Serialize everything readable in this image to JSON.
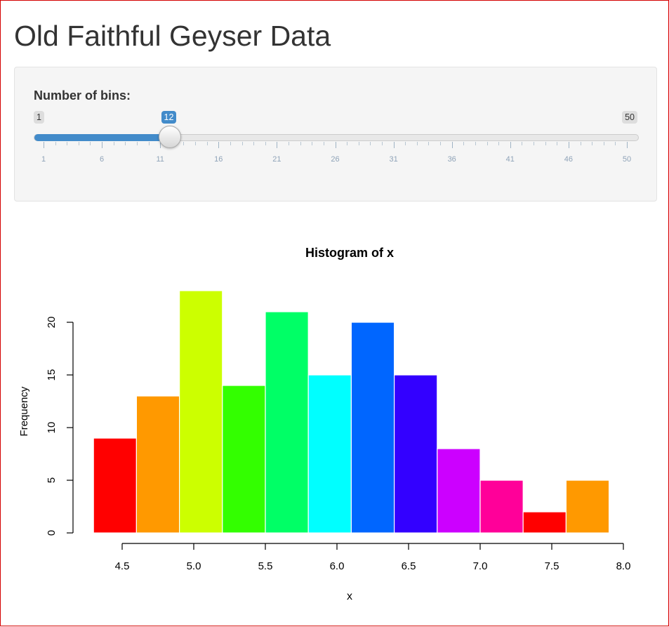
{
  "title": "Old Faithful Geyser Data",
  "slider": {
    "label": "Number of bins:",
    "min": "1",
    "max": "50",
    "value": "12",
    "fraction": 0.2245,
    "tick_labels": [
      "1",
      "6",
      "11",
      "16",
      "21",
      "26",
      "31",
      "36",
      "41",
      "46",
      "50"
    ],
    "accent_color": "#428bca"
  },
  "chart_data": {
    "type": "bar",
    "title": "Histogram of x",
    "xlabel": "x",
    "ylabel": "Frequency",
    "bin_start": 4.3,
    "bin_width": 0.3,
    "values": [
      9,
      13,
      23,
      14,
      21,
      15,
      20,
      15,
      8,
      5,
      2,
      5
    ],
    "colors": [
      "#FF0000",
      "#FF9900",
      "#CCFF00",
      "#33FF00",
      "#00FF66",
      "#00FFFF",
      "#0066FF",
      "#3300FF",
      "#CC00FF",
      "#FF0099",
      "#FF0000",
      "#FF9900"
    ],
    "xticks": [
      "4.5",
      "5.0",
      "5.5",
      "6.0",
      "6.5",
      "7.0",
      "7.5",
      "8.0"
    ],
    "xlim": [
      4.5,
      8.0
    ],
    "yticks": [
      "0",
      "5",
      "10",
      "15",
      "20"
    ],
    "ylim": [
      0,
      20
    ]
  }
}
